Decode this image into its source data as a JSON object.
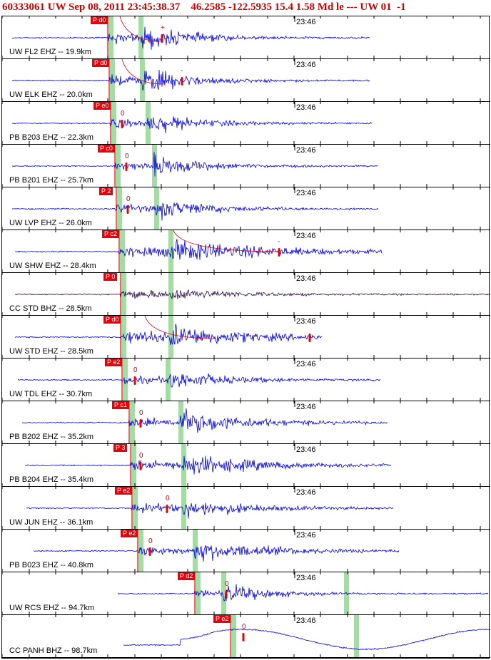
{
  "header": {
    "event_line": "60333061 UW Sep 08, 2011 23:45:38.37    46.2585 -122.5935 15.4 1.58 Md le --- UW 01  -1"
  },
  "colors": {
    "trace_blue": "#0000dd",
    "trace_dark": "#2a0a40",
    "pick_red": "#e8000a",
    "window_green": "#a6dba6",
    "axis_black": "#000000"
  },
  "panels": [
    {
      "label": "UW FL2 EHZ -- 19.9km",
      "time": "23:46",
      "pick": "P d0",
      "phase_mark": "+",
      "dark": false
    },
    {
      "label": "UW ELK EHZ -- 20.0km",
      "time": "23:46",
      "pick": "P d0",
      "phase_mark": "-",
      "dark": false
    },
    {
      "label": "PB B203 EHZ -- 22.3km",
      "time": "23:46",
      "pick": "P e0",
      "phase_mark": "0",
      "dark": false
    },
    {
      "label": "PB B201 EHZ -- 25.7km",
      "time": "23:46",
      "pick": "P c0",
      "phase_mark": "0",
      "dark": false
    },
    {
      "label": "UW LVP EHZ -- 26.0km",
      "time": "23:46",
      "pick": "P 2",
      "phase_mark": "0",
      "dark": false
    },
    {
      "label": "UW SHW EHZ -- 28.4km",
      "time": "23:46",
      "pick": "P c2",
      "phase_mark": "-",
      "dark": false
    },
    {
      "label": "CC STD BHZ -- 28.5km",
      "time": "23:46",
      "pick": "P 0",
      "phase_mark": "",
      "dark": true
    },
    {
      "label": "UW STD EHZ -- 28.5km",
      "time": "23:46",
      "pick": "P d0",
      "phase_mark": "",
      "dark": false
    },
    {
      "label": "UW TDL EHZ -- 30.7km",
      "time": "23:46",
      "pick": "P e2",
      "phase_mark": "0",
      "dark": false
    },
    {
      "label": "PB B202 EHZ -- 35.2km",
      "time": "23:46",
      "pick": "P c1",
      "phase_mark": "0",
      "dark": false
    },
    {
      "label": "PB B204 EHZ -- 35.4km",
      "time": "23:46",
      "pick": "P 3",
      "phase_mark": "0",
      "dark": false
    },
    {
      "label": "UW JUN EHZ -- 36.1km",
      "time": "23:46",
      "pick": "P e2",
      "phase_mark": "0",
      "dark": false
    },
    {
      "label": "PB B023 EHZ -- 40.8km",
      "time": "23:46",
      "pick": "P e2",
      "phase_mark": "0",
      "dark": false
    },
    {
      "label": "UW RCS EHZ -- 94.7km",
      "time": "23:46",
      "pick": "P d2",
      "phase_mark": "0",
      "dark": false
    },
    {
      "label": "CC PANH BHZ -- 98.7km",
      "time": "23:46",
      "pick": "P e2",
      "phase_mark": "0",
      "dark": false
    }
  ]
}
